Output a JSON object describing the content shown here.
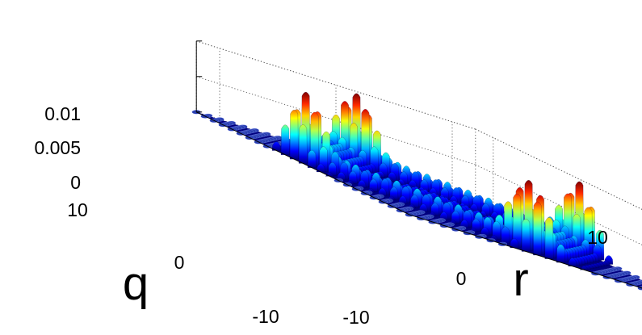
{
  "chart_data": {
    "type": "surface3d",
    "title": "",
    "xlabel": "r",
    "ylabel": "q",
    "zlabel": "",
    "xlim": [
      -12,
      12
    ],
    "ylim": [
      -12,
      12
    ],
    "zlim": [
      0,
      0.01
    ],
    "x_ticks": [
      "-10",
      "0",
      "10"
    ],
    "y_ticks": [
      "-10",
      "0",
      "10"
    ],
    "z_ticks": [
      "0",
      "0.005",
      "0.01"
    ],
    "x_tick_values": [
      -10,
      0,
      10
    ],
    "y_tick_values": [
      -10,
      0,
      10
    ],
    "z_tick_values": [
      0,
      0.005,
      0.01
    ],
    "grid": true,
    "colormap": "jet",
    "lattice_spacing": 1,
    "peaks": [
      {
        "r": 11,
        "q": -1,
        "height": 0.0085
      },
      {
        "r": 1,
        "q": 11,
        "height": 0.0095
      },
      {
        "r": -1,
        "q": -11,
        "height": 0.0095
      },
      {
        "r": -11,
        "q": 1,
        "height": 0.0085
      }
    ],
    "colors": {
      "background": "#ffffff",
      "base": "#00007f"
    }
  }
}
